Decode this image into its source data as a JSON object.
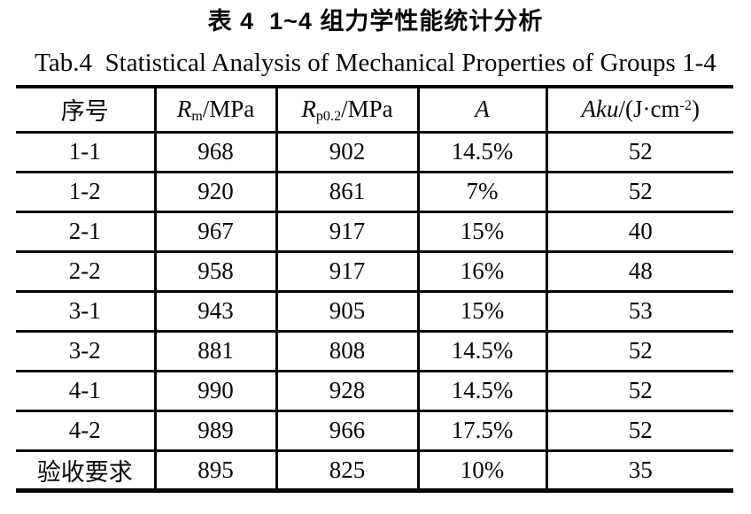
{
  "page": {
    "background": "#ffffff",
    "text_color": "#060606"
  },
  "caption": {
    "cn": "表 4  1~4 组力学性能统计分析",
    "en": "Tab.4  Statistical Analysis of Mechanical Properties of Groups 1-4"
  },
  "table": {
    "columns": [
      {
        "id": "serial-number",
        "parts": [
          {
            "t": "序号"
          }
        ]
      },
      {
        "id": "rm-mpa",
        "parts": [
          {
            "t": "R",
            "s": "i"
          },
          {
            "t": "m",
            "s": "sub"
          },
          {
            "t": "/MPa"
          }
        ]
      },
      {
        "id": "rp02-mpa",
        "parts": [
          {
            "t": "R",
            "s": "i"
          },
          {
            "t": "p0.2",
            "s": "sub"
          },
          {
            "t": "/MPa"
          }
        ]
      },
      {
        "id": "elongation",
        "parts": [
          {
            "t": "A",
            "s": "i"
          }
        ]
      },
      {
        "id": "impact-energy",
        "parts": [
          {
            "t": "Aku",
            "s": "i"
          },
          {
            "t": "/(J·cm"
          },
          {
            "t": "-2",
            "s": "sup"
          },
          {
            "t": ")"
          }
        ]
      }
    ],
    "rows": [
      [
        "1-1",
        "968",
        "902",
        "14.5%",
        "52"
      ],
      [
        "1-2",
        "920",
        "861",
        "7%",
        "52"
      ],
      [
        "2-1",
        "967",
        "917",
        "15%",
        "40"
      ],
      [
        "2-2",
        "958",
        "917",
        "16%",
        "48"
      ],
      [
        "3-1",
        "943",
        "905",
        "15%",
        "53"
      ],
      [
        "3-2",
        "881",
        "808",
        "14.5%",
        "52"
      ],
      [
        "4-1",
        "990",
        "928",
        "14.5%",
        "52"
      ],
      [
        "4-2",
        "989",
        "966",
        "17.5%",
        "52"
      ],
      [
        "验收要求",
        "895",
        "825",
        "10%",
        "35"
      ]
    ]
  }
}
